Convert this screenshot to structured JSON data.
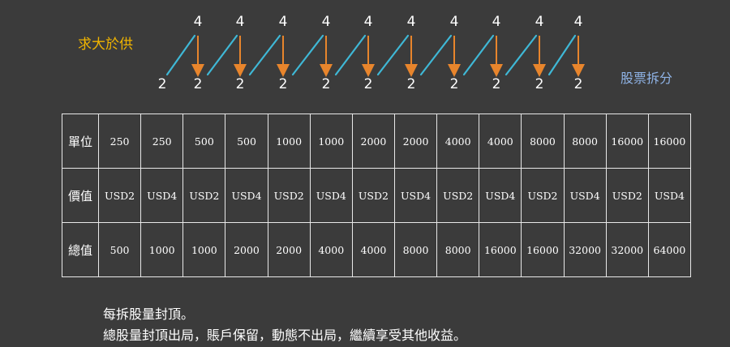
{
  "diagram": {
    "demand_label": "求大於供",
    "split_label": "股票拆分",
    "top_values": [
      "4",
      "4",
      "4",
      "4",
      "4",
      "4",
      "4",
      "4",
      "4",
      "4"
    ],
    "bottom_values": [
      "2",
      "2",
      "2",
      "2",
      "2",
      "2",
      "2",
      "2",
      "2",
      "2",
      "2"
    ],
    "colors": {
      "rise_line": "#3fb8d6",
      "split_arrow": "#e8852c",
      "demand_text": "#f0b400",
      "split_text": "#8fb3e6"
    }
  },
  "table": {
    "rows": [
      {
        "header": "單位",
        "cells": [
          "250",
          "250",
          "500",
          "500",
          "1000",
          "1000",
          "2000",
          "2000",
          "4000",
          "4000",
          "8000",
          "8000",
          "16000",
          "16000"
        ]
      },
      {
        "header": "價值",
        "cells": [
          "USD2",
          "USD4",
          "USD2",
          "USD4",
          "USD2",
          "USD4",
          "USD2",
          "USD4",
          "USD2",
          "USD4",
          "USD2",
          "USD4",
          "USD2",
          "USD4"
        ]
      },
      {
        "header": "總值",
        "cells": [
          "500",
          "1000",
          "1000",
          "2000",
          "2000",
          "4000",
          "4000",
          "8000",
          "8000",
          "16000",
          "16000",
          "32000",
          "32000",
          "64000"
        ]
      }
    ]
  },
  "notes": {
    "line1": "每拆股量封頂。",
    "line2": "總股量封頂出局，賬戶保留，動態不出局，繼續享受其他收益。"
  }
}
